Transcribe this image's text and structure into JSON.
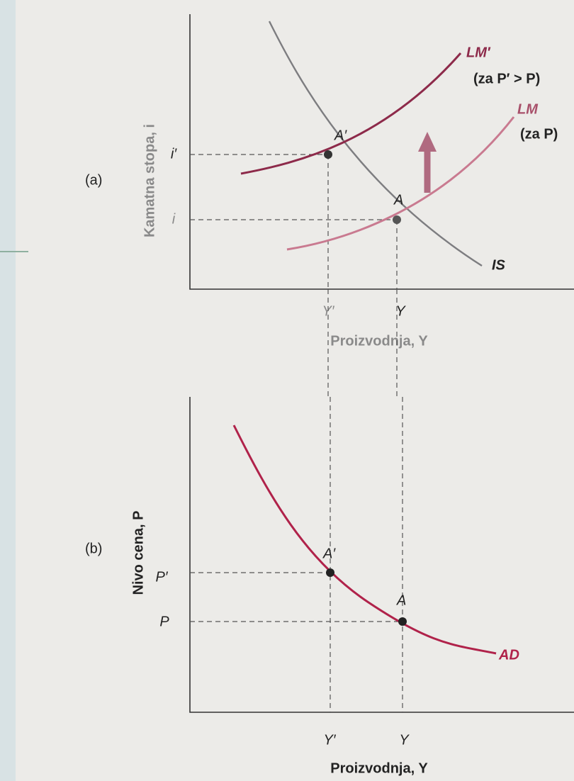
{
  "panels": [
    {
      "tag": "(a)",
      "y_axis": "Kamatna stopa, i",
      "x_axis": "Proizvodnja, Y",
      "y_ticks": [
        "i′",
        "i"
      ],
      "x_ticks": [
        "Y′",
        "Y"
      ],
      "points": [
        "A′",
        "A"
      ],
      "curves": [
        {
          "label": "LM′",
          "note": "(za P′ > P)"
        },
        {
          "label": "LM",
          "note": "(za P)"
        },
        {
          "label": "IS"
        }
      ]
    },
    {
      "tag": "(b)",
      "y_axis": "Nivo cena, P",
      "x_axis": "Proizvodnja, Y",
      "y_ticks": [
        "P′",
        "P"
      ],
      "x_ticks": [
        "Y′",
        "Y"
      ],
      "points": [
        "A′",
        "A"
      ],
      "curves": [
        {
          "label": "AD"
        }
      ]
    }
  ]
}
